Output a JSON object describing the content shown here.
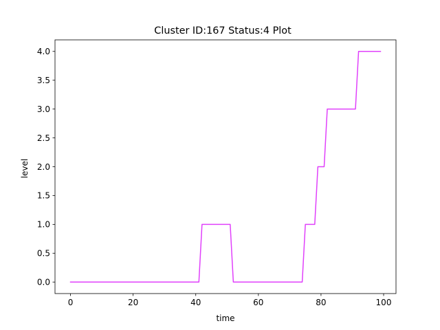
{
  "chart_data": {
    "type": "line",
    "title": "Cluster ID:167 Status:4 Plot",
    "xlabel": "time",
    "ylabel": "level",
    "xlim": [
      -4.95,
      103.95
    ],
    "ylim": [
      -0.2,
      4.2
    ],
    "xticks": [
      0,
      20,
      40,
      60,
      80,
      100
    ],
    "yticks": [
      0.0,
      0.5,
      1.0,
      1.5,
      2.0,
      2.5,
      3.0,
      3.5,
      4.0
    ],
    "xtick_labels": [
      "0",
      "20",
      "40",
      "60",
      "80",
      "100"
    ],
    "ytick_labels": [
      "0.0",
      "0.5",
      "1.0",
      "1.5",
      "2.0",
      "2.5",
      "3.0",
      "3.5",
      "4.0"
    ],
    "grid": false,
    "series": [
      {
        "color": "#e040fb",
        "x": [
          0,
          41,
          42,
          51,
          52,
          74,
          75,
          78,
          79,
          81,
          82,
          91,
          92,
          99
        ],
        "y": [
          0,
          0,
          1,
          1,
          0,
          0,
          1,
          1,
          2,
          2,
          3,
          3,
          4,
          4
        ]
      }
    ]
  }
}
